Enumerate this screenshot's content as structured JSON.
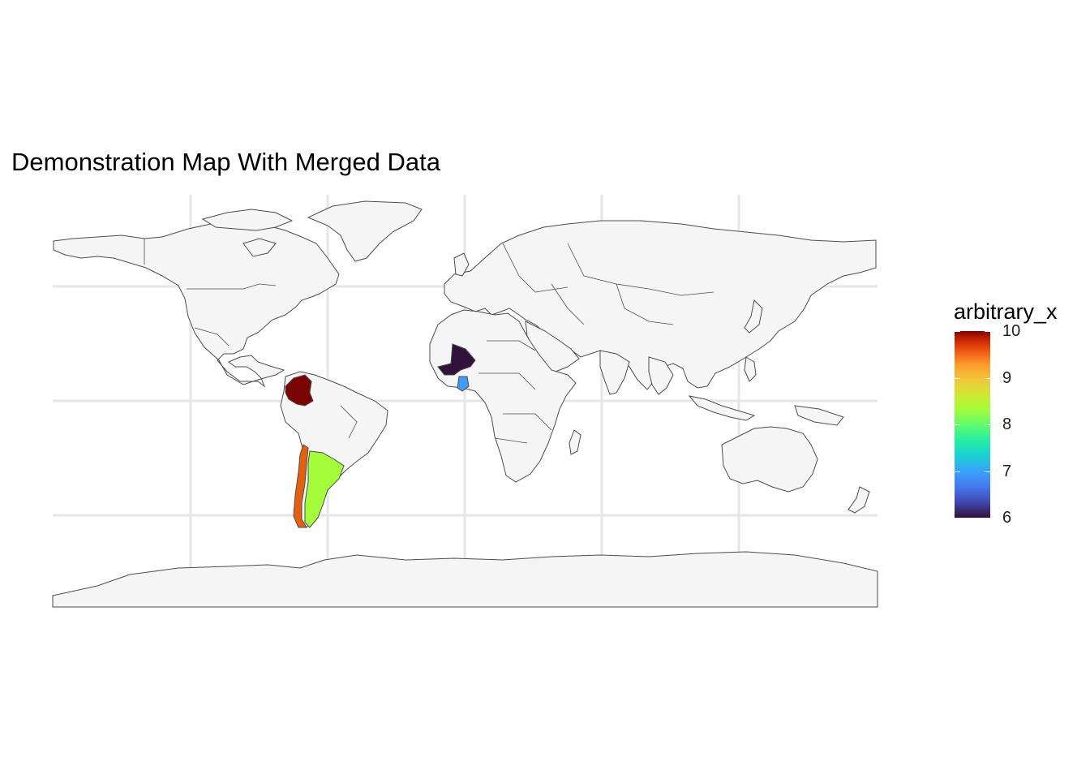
{
  "title": "Demonstration Map With Merged Data",
  "legend": {
    "title": "arbitrary_x",
    "min": 6,
    "max": 10,
    "ticks": [
      {
        "value": 10,
        "label": "10"
      },
      {
        "value": 9,
        "label": "9"
      },
      {
        "value": 8,
        "label": "8"
      },
      {
        "value": 7,
        "label": "7"
      },
      {
        "value": 6,
        "label": "6"
      }
    ],
    "palette": "turbo"
  },
  "colors": {
    "land": "#f5f5f5",
    "border": "#4d4d4d",
    "grid": "#e6e6e6"
  },
  "regions": [
    {
      "name": "Colombia",
      "value": 10,
      "color": "#7a0403"
    },
    {
      "name": "Chile",
      "value": 9,
      "color": "#e4600e"
    },
    {
      "name": "Argentina",
      "value": 8,
      "color": "#a4fc3b"
    },
    {
      "name": "Ghana",
      "value": 7,
      "color": "#3e9bfe"
    },
    {
      "name": "Mali",
      "value": 6,
      "color": "#30123b"
    }
  ]
}
